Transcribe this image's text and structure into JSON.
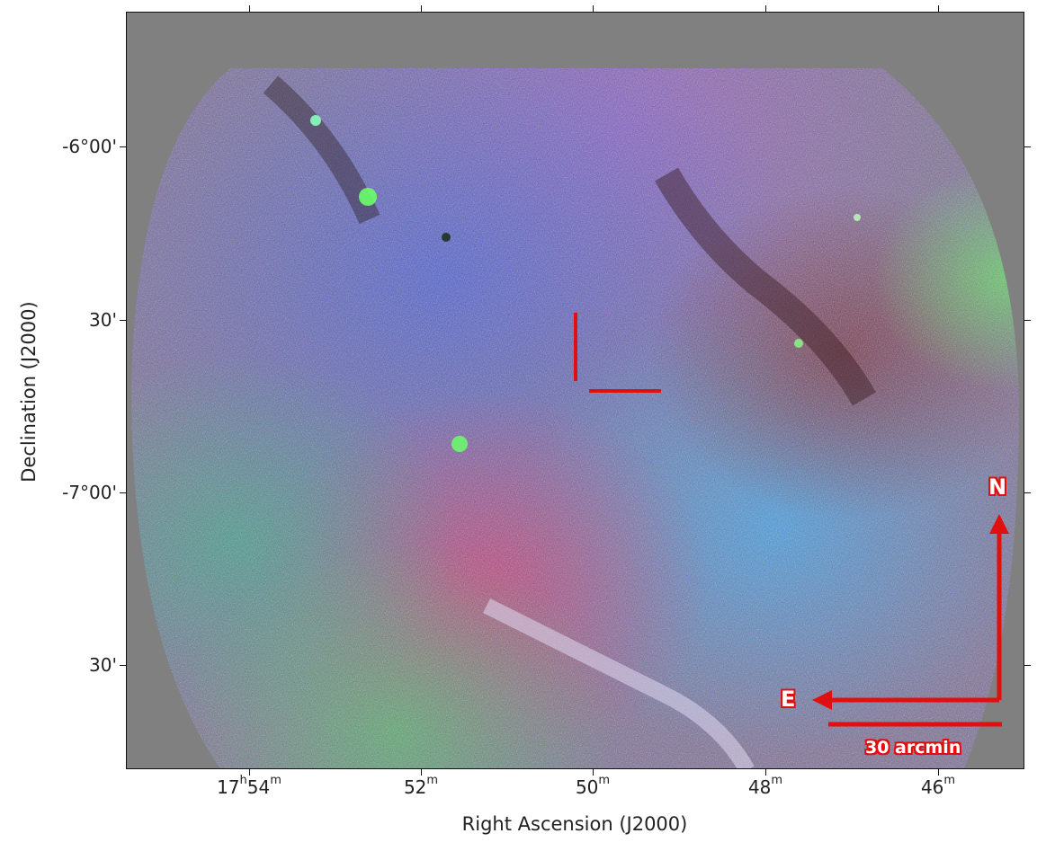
{
  "axes": {
    "xlabel": "Right Ascension (J2000)",
    "ylabel": "Declination (J2000)",
    "x_ticks": [
      {
        "h": "17",
        "h_unit": "h",
        "m": "54",
        "m_unit": "m"
      },
      {
        "h": "",
        "h_unit": "",
        "m": "52",
        "m_unit": "m"
      },
      {
        "h": "",
        "h_unit": "",
        "m": "50",
        "m_unit": "m"
      },
      {
        "h": "",
        "h_unit": "",
        "m": "48",
        "m_unit": "m"
      },
      {
        "h": "",
        "h_unit": "",
        "m": "46",
        "m_unit": "m"
      }
    ],
    "y_ticks": [
      "-6°00'",
      "30'",
      "-7°00'",
      "30'"
    ]
  },
  "annotations": {
    "north_label": "N",
    "east_label": "E",
    "scale_bar_label": "30 arcmin"
  },
  "colors": {
    "background": "#808080",
    "marker": "#e01010",
    "frame": "#111111"
  }
}
